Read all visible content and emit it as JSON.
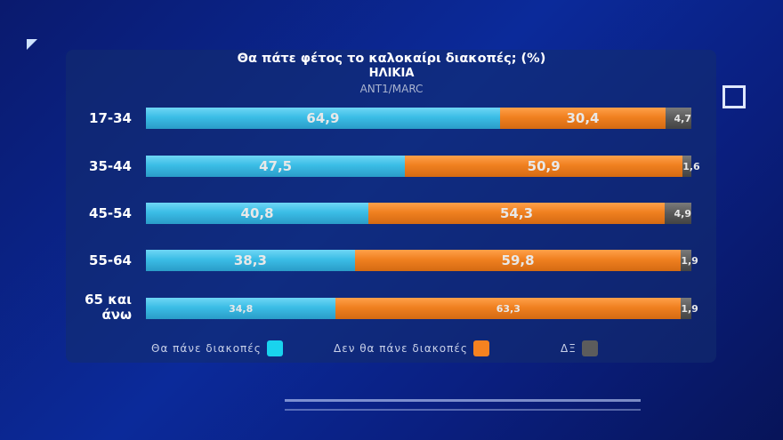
{
  "chart_data": {
    "type": "bar",
    "orientation": "horizontal",
    "stacked": true,
    "title": "Θα πάτε φέτος το καλοκαίρι διακοπές; (%)",
    "subtitle": "ΗΛΙΚΙΑ",
    "source": "ANT1/MARC",
    "categories": [
      "17-34",
      "35-44",
      "45-54",
      "55-64",
      "65 και άνω"
    ],
    "series": [
      {
        "name": "Θα πάνε διακοπές",
        "color": "#3bbde6",
        "values": [
          64.9,
          47.5,
          40.8,
          38.3,
          34.8
        ],
        "labels": [
          "64,9",
          "47,5",
          "40,8",
          "38,3",
          "34,8"
        ]
      },
      {
        "name": "Δεν θα πάνε διακοπές",
        "color": "#f08020",
        "values": [
          30.4,
          50.9,
          54.3,
          59.8,
          63.3
        ],
        "labels": [
          "30,4",
          "50,9",
          "54,3",
          "59,8",
          "63,3"
        ]
      },
      {
        "name": "ΔΞ",
        "color": "#5a5a5a",
        "values": [
          4.7,
          1.6,
          4.9,
          1.9,
          1.9
        ],
        "labels": [
          "4,7",
          "1,6",
          "4,9",
          "1,9",
          "1,9"
        ]
      }
    ],
    "xlim": [
      0,
      100
    ],
    "legend_position": "bottom",
    "grid": false
  }
}
